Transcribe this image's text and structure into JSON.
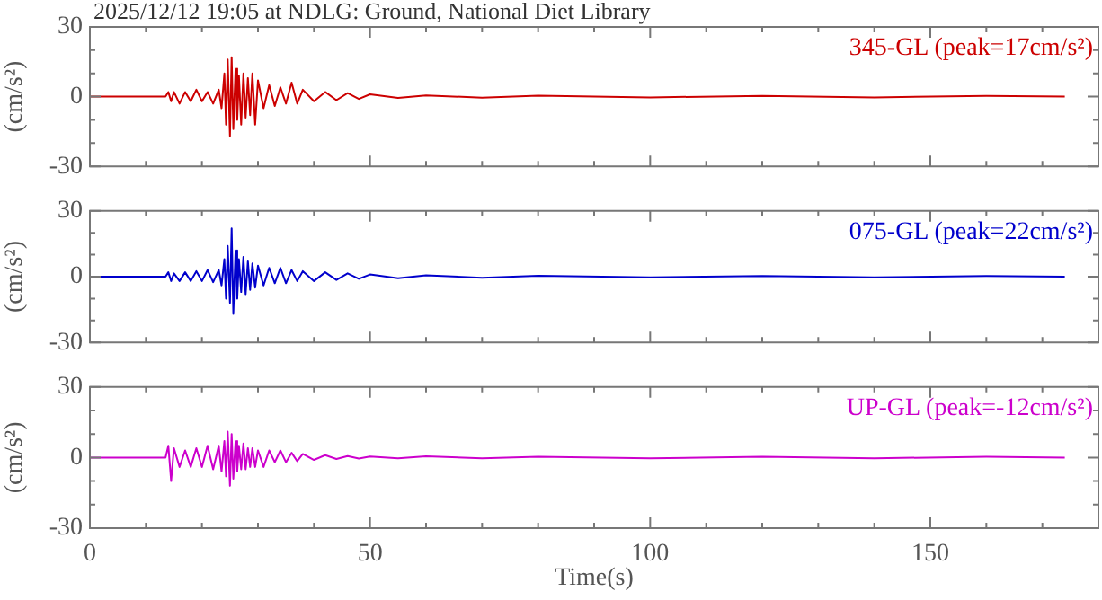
{
  "chart_data": [
    {
      "type": "line",
      "title": "2025/12/12 19:05 at NDLG: Ground, National Diet Library",
      "ylabel": "(cm/s²)",
      "x": [
        0,
        13.5,
        14,
        14.5,
        15,
        16,
        17,
        18,
        19,
        20,
        21,
        22,
        23,
        23.5,
        24,
        24.3,
        24.6,
        25,
        25.3,
        25.6,
        26,
        26.3,
        26.6,
        27,
        27.4,
        27.8,
        28.2,
        28.6,
        29,
        29.5,
        30,
        31,
        32,
        33,
        34,
        35,
        36,
        37,
        38,
        40,
        42,
        44,
        46,
        48,
        50,
        55,
        60,
        70,
        80,
        100,
        120,
        140,
        160,
        174
      ],
      "series": [
        {
          "name": "345-GL (peak=17cm/s²)",
          "color": "#cc0000",
          "values": [
            0,
            0,
            2,
            -2,
            2,
            -3,
            2,
            -2,
            3,
            -2,
            2,
            -3,
            3,
            -5,
            10,
            -12,
            16,
            -17,
            17,
            -14,
            12,
            -10,
            9,
            -12,
            10,
            -9,
            8,
            -8,
            10,
            -12,
            7,
            -5,
            5,
            -4,
            4,
            -3,
            6,
            -3,
            3,
            -2,
            2,
            -1.5,
            1.5,
            -1,
            1,
            -0.5,
            0.5,
            -0.4,
            0.4,
            -0.3,
            0.3,
            -0.3,
            0.3,
            0
          ]
        }
      ],
      "xlim": [
        0,
        180
      ],
      "xticks": [
        0,
        {
          "value": 10,
          "label": null
        },
        {
          "value": 20,
          "label": null
        },
        {
          "value": 30,
          "label": null
        },
        {
          "value": 40,
          "label": null
        },
        50,
        {
          "value": 60,
          "label": null
        },
        {
          "value": 70,
          "label": null
        },
        {
          "value": 80,
          "label": null
        },
        {
          "value": 90,
          "label": null
        },
        100,
        {
          "value": 110,
          "label": null
        },
        {
          "value": 120,
          "label": null
        },
        {
          "value": 130,
          "label": null
        },
        {
          "value": 140,
          "label": null
        },
        150,
        {
          "value": 160,
          "label": null
        },
        {
          "value": 170,
          "label": null
        }
      ],
      "ylim": [
        -30,
        30
      ],
      "yticks": [
        -30,
        {
          "value": -20,
          "label": null
        },
        {
          "value": -10,
          "label": null
        },
        0,
        {
          "value": 10,
          "label": null
        },
        {
          "value": 20,
          "label": null
        },
        30
      ],
      "tick_labels": "y",
      "grid": false,
      "legend": false,
      "marker": "none",
      "line_style": "solid"
    },
    {
      "type": "line",
      "ylabel": "(cm/s²)",
      "x": [
        0,
        13.5,
        14,
        14.5,
        15,
        16,
        17,
        18,
        19,
        20,
        21,
        22,
        23,
        23.5,
        24,
        24.3,
        24.6,
        25,
        25.3,
        25.6,
        26,
        26.3,
        26.6,
        27,
        27.4,
        27.8,
        28.2,
        28.6,
        29,
        29.5,
        30,
        31,
        32,
        33,
        34,
        35,
        36,
        37,
        38,
        40,
        42,
        44,
        46,
        48,
        50,
        55,
        60,
        70,
        80,
        100,
        120,
        140,
        160,
        174
      ],
      "series": [
        {
          "name": "075-GL (peak=22cm/s²)",
          "color": "#0000cc",
          "values": [
            0,
            0,
            2,
            -2,
            1.5,
            -2,
            2,
            -2,
            2.5,
            -2,
            3,
            -2.5,
            3,
            -4,
            8,
            -10,
            14,
            -12,
            22,
            -17,
            12,
            -10,
            8,
            -7,
            9,
            -8,
            7,
            -6,
            6,
            -5,
            5,
            -4,
            4,
            -3,
            4,
            -3,
            3,
            -2,
            2.5,
            -2,
            2,
            -1.5,
            1.5,
            -1,
            1,
            -0.7,
            0.6,
            -0.5,
            0.4,
            -0.3,
            0.3,
            -0.3,
            0.3,
            0
          ]
        }
      ],
      "xlim": [
        0,
        180
      ],
      "xticks": [
        0,
        {
          "value": 10,
          "label": null
        },
        {
          "value": 20,
          "label": null
        },
        {
          "value": 30,
          "label": null
        },
        {
          "value": 40,
          "label": null
        },
        50,
        {
          "value": 60,
          "label": null
        },
        {
          "value": 70,
          "label": null
        },
        {
          "value": 80,
          "label": null
        },
        {
          "value": 90,
          "label": null
        },
        100,
        {
          "value": 110,
          "label": null
        },
        {
          "value": 120,
          "label": null
        },
        {
          "value": 130,
          "label": null
        },
        {
          "value": 140,
          "label": null
        },
        150,
        {
          "value": 160,
          "label": null
        },
        {
          "value": 170,
          "label": null
        }
      ],
      "ylim": [
        -30,
        30
      ],
      "yticks": [
        -30,
        {
          "value": -20,
          "label": null
        },
        {
          "value": -10,
          "label": null
        },
        0,
        {
          "value": 10,
          "label": null
        },
        {
          "value": 20,
          "label": null
        },
        30
      ],
      "tick_labels": "y",
      "grid": false,
      "legend": false,
      "marker": "none",
      "line_style": "solid"
    },
    {
      "type": "line",
      "ylabel": "(cm/s²)",
      "xlabel": "Time(s)",
      "x": [
        0,
        13.5,
        14,
        14.5,
        15,
        16,
        17,
        18,
        19,
        20,
        21,
        22,
        23,
        23.5,
        24,
        24.3,
        24.6,
        25,
        25.3,
        25.6,
        26,
        26.3,
        26.6,
        27,
        27.4,
        27.8,
        28.2,
        28.6,
        29,
        29.5,
        30,
        31,
        32,
        33,
        34,
        35,
        36,
        37,
        38,
        40,
        42,
        44,
        46,
        48,
        50,
        55,
        60,
        70,
        80,
        100,
        120,
        140,
        160,
        174
      ],
      "series": [
        {
          "name": "UP-GL (peak=-12cm/s²)",
          "color": "#cc00cc",
          "values": [
            0,
            0,
            5,
            -10,
            4,
            -4,
            3,
            -4,
            4,
            -4,
            5,
            -5,
            5,
            -6,
            7,
            -8,
            11,
            -12,
            10,
            -9,
            7,
            -6,
            5,
            -5,
            6,
            -5,
            4,
            -4,
            4,
            -4,
            3,
            -4,
            3,
            -2,
            3,
            -2,
            2,
            -1.5,
            1.5,
            -1,
            1,
            -0.6,
            0.6,
            -0.4,
            0.4,
            -0.3,
            0.5,
            -0.3,
            0.3,
            -0.3,
            0.3,
            -0.3,
            0.3,
            0
          ]
        }
      ],
      "xlim": [
        0,
        180
      ],
      "xticks": [
        0,
        {
          "value": 10,
          "label": null
        },
        {
          "value": 20,
          "label": null
        },
        {
          "value": 30,
          "label": null
        },
        {
          "value": 40,
          "label": null
        },
        50,
        {
          "value": 60,
          "label": null
        },
        {
          "value": 70,
          "label": null
        },
        {
          "value": 80,
          "label": null
        },
        {
          "value": 90,
          "label": null
        },
        100,
        {
          "value": 110,
          "label": null
        },
        {
          "value": 120,
          "label": null
        },
        {
          "value": 130,
          "label": null
        },
        {
          "value": 140,
          "label": null
        },
        150,
        {
          "value": 160,
          "label": null
        },
        {
          "value": 170,
          "label": null
        }
      ],
      "ylim": [
        -30,
        30
      ],
      "yticks": [
        -30,
        {
          "value": -20,
          "label": null
        },
        {
          "value": -10,
          "label": null
        },
        0,
        {
          "value": 10,
          "label": null
        },
        {
          "value": 20,
          "label": null
        },
        30
      ],
      "grid": false,
      "legend": false,
      "marker": "none",
      "line_style": "solid"
    }
  ]
}
